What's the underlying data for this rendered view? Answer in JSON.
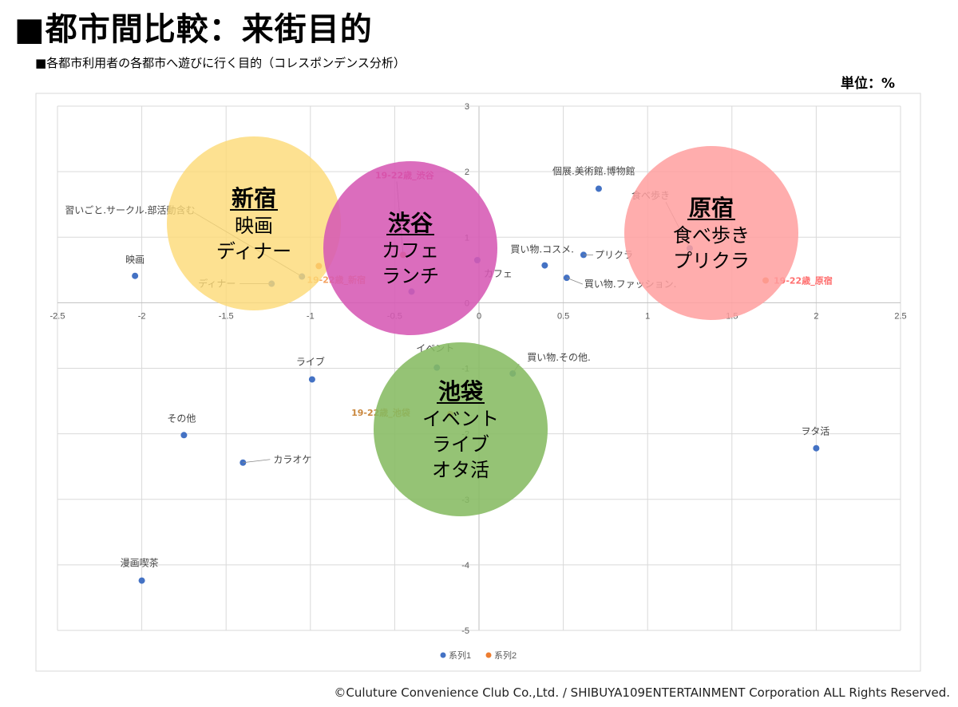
{
  "header": {
    "title": "■都市間比較：来街目的",
    "subtitle": "■各都市利用者の各都市へ遊びに行く目的（コレスポンデンス分析）",
    "unit": "単位：%"
  },
  "footer": {
    "copyright": "©Culuture Convenience Club Co.,Ltd. / SHIBUYA109ENTERTAINMENT Corporation ALL Rights Reserved."
  },
  "colors": {
    "series1": "#4472c4",
    "series2": "#ed7d31",
    "shinjuku": "#fdd976",
    "shibuya": "#d659b4",
    "harajuku": "#ff9f9f",
    "ikebukuro": "#86bb62"
  },
  "chart_data": {
    "type": "scatter",
    "title": "各都市利用者の各都市へ遊びに行く目的（コレスポンデンス分析）",
    "xlim": [
      -2.5,
      2.5
    ],
    "ylim": [
      -5,
      3
    ],
    "x_ticks": [
      "-2.5",
      "-2",
      "-1.5",
      "-1",
      "-0.5",
      "0",
      "0.5",
      "1",
      "1.5",
      "2",
      "2.5"
    ],
    "y_ticks": [
      "3",
      "2",
      "1",
      "0",
      "-1",
      "-2",
      "-3",
      "-4",
      "-5"
    ],
    "grid": true,
    "legend": "bottom",
    "series": [
      {
        "name": "系列1",
        "points": [
          {
            "label": "映画",
            "x": -2.04,
            "y": 0.41
          },
          {
            "label": "ディナー",
            "x": -1.23,
            "y": 0.29
          },
          {
            "label": "習いごと.サークル.部活動含む",
            "x": -1.05,
            "y": 0.4
          },
          {
            "label": "",
            "x": -0.4,
            "y": 0.17
          },
          {
            "label": "カフェ",
            "x": -0.01,
            "y": 0.65
          },
          {
            "label": "買い物.コスメ.",
            "x": 0.39,
            "y": 0.57
          },
          {
            "label": "プリクラ",
            "x": 0.62,
            "y": 0.73
          },
          {
            "label": "買い物.ファッション.",
            "x": 0.52,
            "y": 0.38
          },
          {
            "label": "個展.美術館.博物館",
            "x": 0.71,
            "y": 1.74
          },
          {
            "label": "食べ歩き",
            "x": 1.25,
            "y": 0.83
          },
          {
            "label": "イベント",
            "x": -0.25,
            "y": -0.99
          },
          {
            "label": "買い物.その他.",
            "x": 0.2,
            "y": -1.08
          },
          {
            "label": "ライブ",
            "x": -0.99,
            "y": -1.17
          },
          {
            "label": "その他",
            "x": -1.75,
            "y": -2.02
          },
          {
            "label": "カラオケ",
            "x": -1.4,
            "y": -2.44
          },
          {
            "label": "ヲタ活",
            "x": 2.0,
            "y": -2.22
          },
          {
            "label": "漫画喫茶",
            "x": -2.0,
            "y": -4.24
          }
        ]
      },
      {
        "name": "系列2",
        "points": [
          {
            "label": "19-22歳_新宿",
            "x": -0.95,
            "y": 0.56
          },
          {
            "label": "19-22歳_渋谷",
            "x": -0.45,
            "y": 0.73
          },
          {
            "label": "19-22歳_原宿",
            "x": 1.7,
            "y": 0.34
          },
          {
            "label": "19-22歳_池袋",
            "x": -0.17,
            "y": -1.7
          }
        ]
      }
    ],
    "clusters": [
      {
        "area": "新宿",
        "items": [
          "映画",
          "ディナー"
        ]
      },
      {
        "area": "渋谷",
        "items": [
          "カフェ",
          "ランチ"
        ]
      },
      {
        "area": "原宿",
        "items": [
          "食べ歩き",
          "プリクラ"
        ]
      },
      {
        "area": "池袋",
        "items": [
          "イベント",
          "ライブ",
          "オタ活"
        ]
      }
    ]
  }
}
